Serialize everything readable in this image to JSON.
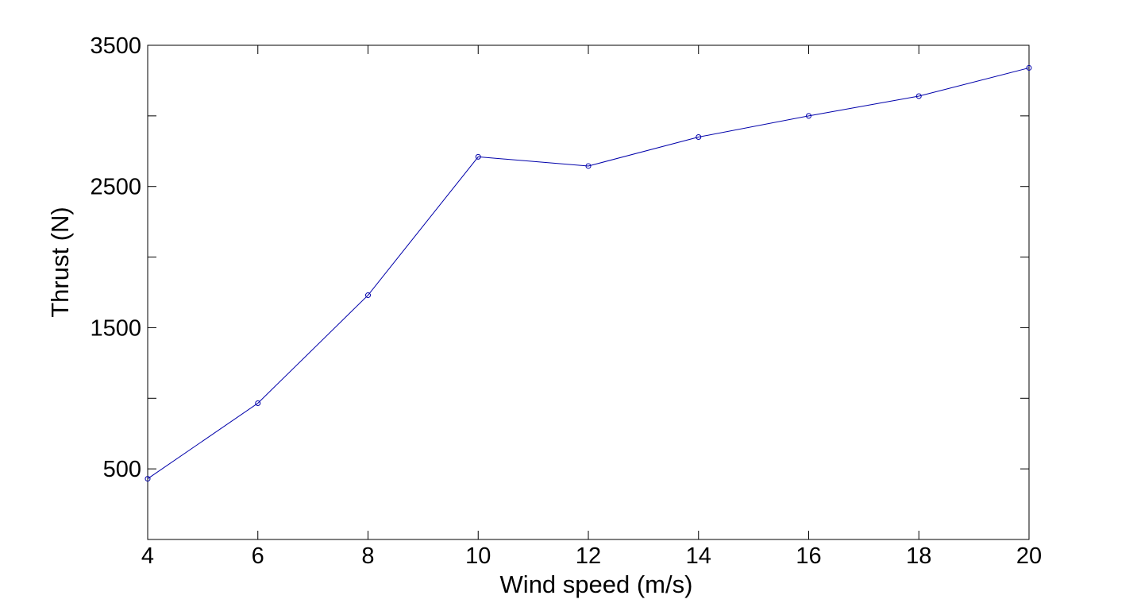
{
  "chart_data": {
    "type": "line",
    "title": "",
    "xlabel": "Wind speed (m/s)",
    "ylabel": "Thrust (N)",
    "xlim": [
      4,
      20
    ],
    "ylim": [
      0,
      3500
    ],
    "xticks": [
      4,
      6,
      8,
      10,
      12,
      14,
      16,
      18,
      20
    ],
    "xtick_labels": [
      "4",
      "6",
      "8",
      "10",
      "12",
      "14",
      "16",
      "18",
      "20"
    ],
    "yticks": [
      0,
      500,
      1000,
      1500,
      2000,
      2500,
      3000,
      3500
    ],
    "ytick_labels": [
      "",
      "500",
      "",
      "1500",
      "",
      "2500",
      "",
      "3500"
    ],
    "grid": false,
    "legend": "none",
    "series": [
      {
        "color": "#0000aa",
        "marker": "circle",
        "x": [
          4,
          6,
          8,
          10,
          12,
          14,
          16,
          18,
          20
        ],
        "y": [
          430,
          965,
          1730,
          2710,
          2645,
          2850,
          3000,
          3140,
          3340
        ]
      }
    ]
  }
}
